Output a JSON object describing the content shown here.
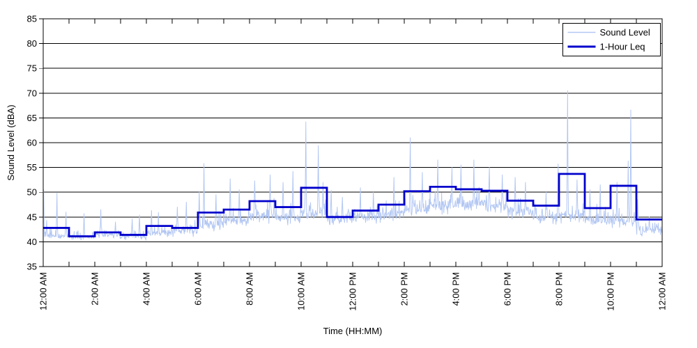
{
  "figure": {
    "background": "#ffffff",
    "plot_border_color": "#000000",
    "x_axis_title": "Time (HH:MM)",
    "y_axis_title": "Sound Level (dBA)"
  },
  "legend": {
    "position": "top-right",
    "background": "#ffffff",
    "border_color": "#000000",
    "entries": [
      {
        "label": "Sound Level",
        "color": "#b3c7f3",
        "line_width": 1.5
      },
      {
        "label": "1-Hour Leq",
        "color": "#0000cc",
        "line_width": 3
      }
    ]
  },
  "chart_data": {
    "type": "line",
    "title": "",
    "xlabel": "Time (HH:MM)",
    "ylabel": "Sound Level (dBA)",
    "xlim_hours": [
      0,
      24
    ],
    "ylim": [
      35,
      85
    ],
    "y_ticks": [
      35,
      40,
      45,
      50,
      55,
      60,
      65,
      70,
      75,
      80,
      85
    ],
    "x_tick_hours": [
      0,
      2,
      4,
      6,
      8,
      10,
      12,
      14,
      16,
      18,
      20,
      22,
      24
    ],
    "x_tick_labels": [
      "12:00 AM",
      "2:00 AM",
      "4:00 AM",
      "6:00 AM",
      "8:00 AM",
      "10:00 AM",
      "12:00 PM",
      "2:00 PM",
      "4:00 PM",
      "6:00 PM",
      "8:00 PM",
      "10:00 PM",
      "12:00 AM"
    ],
    "minor_x_tick_every_hours": 1,
    "grid": {
      "horizontal": true,
      "vertical": false,
      "color": "#000000"
    },
    "legend_position": "top-right",
    "series": [
      {
        "name": "Sound Level",
        "color": "#b3c7f3",
        "style": "noisy-samples",
        "sample_interval_minutes": 1,
        "synthesis_seed": 42,
        "hourly_baseline_dBA": [
          41.2,
          41.0,
          41.3,
          41.1,
          41.8,
          42.2,
          43.5,
          44.3,
          45.3,
          45.0,
          45.8,
          44.7,
          45.0,
          45.5,
          46.5,
          47.5,
          47.5,
          47.2,
          46.2,
          45.0,
          45.3,
          44.3,
          44.0,
          42.3
        ],
        "hourly_variation_dBA": [
          0.7,
          0.6,
          0.7,
          0.7,
          0.9,
          1.0,
          1.3,
          1.3,
          1.4,
          1.4,
          1.5,
          1.4,
          1.4,
          1.4,
          1.6,
          1.7,
          1.7,
          1.6,
          1.5,
          1.3,
          1.4,
          1.3,
          1.3,
          1.0
        ],
        "notable_peaks_hour_dBA": [
          [
            0.02,
            50.5
          ],
          [
            0.13,
            44.3
          ],
          [
            0.53,
            49.8
          ],
          [
            0.88,
            46.0
          ],
          [
            1.58,
            45.7
          ],
          [
            2.24,
            46.5
          ],
          [
            2.8,
            44.0
          ],
          [
            3.45,
            44.6
          ],
          [
            3.73,
            45.4
          ],
          [
            4.2,
            46.3
          ],
          [
            4.47,
            45.9
          ],
          [
            5.2,
            47.0
          ],
          [
            5.55,
            48.0
          ],
          [
            6.05,
            50.2
          ],
          [
            6.24,
            55.8
          ],
          [
            6.7,
            49.5
          ],
          [
            7.25,
            52.7
          ],
          [
            7.6,
            50.5
          ],
          [
            8.2,
            52.3
          ],
          [
            8.8,
            53.5
          ],
          [
            9.3,
            52.0
          ],
          [
            9.68,
            54.2
          ],
          [
            10.19,
            64.2
          ],
          [
            10.67,
            59.4
          ],
          [
            10.85,
            52.0
          ],
          [
            11.16,
            50.4
          ],
          [
            11.6,
            49.0
          ],
          [
            12.3,
            50.9
          ],
          [
            12.8,
            50.0
          ],
          [
            13.6,
            53.0
          ],
          [
            14.24,
            61.0
          ],
          [
            14.7,
            54.0
          ],
          [
            15.3,
            56.5
          ],
          [
            15.85,
            55.0
          ],
          [
            16.2,
            55.5
          ],
          [
            16.7,
            56.5
          ],
          [
            17.3,
            55.0
          ],
          [
            17.8,
            53.5
          ],
          [
            18.3,
            53.0
          ],
          [
            18.7,
            52.0
          ],
          [
            19.5,
            50.0
          ],
          [
            19.97,
            55.7
          ],
          [
            20.33,
            70.5
          ],
          [
            20.7,
            52.5
          ],
          [
            21.2,
            50.5
          ],
          [
            21.6,
            51.5
          ],
          [
            22.25,
            52.0
          ],
          [
            22.68,
            56.3
          ],
          [
            22.78,
            66.6
          ],
          [
            23.05,
            48.5
          ],
          [
            23.5,
            45.0
          ]
        ]
      },
      {
        "name": "1-Hour Leq",
        "color": "#0000cc",
        "style": "step",
        "step_start_hours": [
          0,
          1,
          2,
          3,
          4,
          5,
          6,
          7,
          8,
          9,
          10,
          11,
          12,
          13,
          14,
          15,
          16,
          17,
          18,
          19,
          20,
          21,
          22,
          23
        ],
        "hourly_leq_dBA": [
          42.8,
          41.1,
          41.9,
          41.4,
          43.2,
          42.8,
          45.9,
          46.5,
          48.2,
          47.0,
          50.9,
          45.0,
          46.3,
          47.5,
          50.2,
          51.1,
          50.6,
          50.3,
          48.3,
          47.3,
          53.7,
          46.8,
          51.3,
          44.5
        ]
      }
    ]
  }
}
